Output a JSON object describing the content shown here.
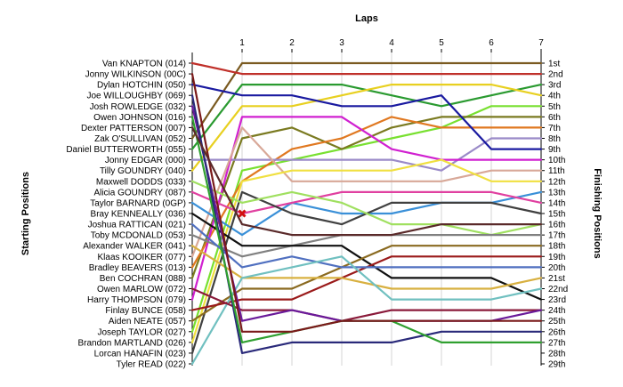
{
  "chart_data": {
    "type": "line",
    "title": "Laps",
    "xlabel": "Laps",
    "ylabel_left": "Starting Positions",
    "ylabel_right": "Finishing Positions",
    "x": [
      0,
      1,
      2,
      3,
      4,
      5,
      6,
      7
    ],
    "xticks": [
      "1",
      "2",
      "3",
      "4",
      "5",
      "6",
      "7"
    ],
    "y_inverted": true,
    "ylim": [
      1,
      29
    ],
    "starting_labels": [
      "Van KNAPTON (014)",
      "Jonny WILKINSON (00C)",
      "Dylan HOTCHIN (050)",
      "Joe WILLOUGHBY (069)",
      "Josh ROWLEDGE (032)",
      "Owen JOHNSON (016)",
      "Dexter PATTERSON (007)",
      "Zak O'SULLIVAN (052)",
      "Daniel BUTTERWORTH (055)",
      "Jonny EDGAR (000)",
      "Tilly GOUNDRY (040)",
      "Maxwell DODDS (033)",
      "Alicia GOUNDRY (087)",
      "Taylor BARNARD (0GP)",
      "Bray KENNEALLY (036)",
      "Joshua RATTICAN (021)",
      "Toby MCDONALD (053)",
      "Alexander WALKER (041)",
      "Klaas KOOIKER (077)",
      "Bradley BEAVERS (013)",
      "Ben COCHRAN (088)",
      "Owen MARLOW (072)",
      "Harry THOMPSON (079)",
      "Finlay BUNCE (058)",
      "Aiden NEATE (057)",
      "Joseph TAYLOR (027)",
      "Brandon MARTLAND (026)",
      "Lorcan HANAFIN (023)",
      "Tyler READ (022)"
    ],
    "finishing_labels": [
      "1st",
      "2nd",
      "3rd",
      "4th",
      "5th",
      "6th",
      "7th",
      "8th",
      "9th",
      "10th",
      "11th",
      "12th",
      "13th",
      "14th",
      "15th",
      "16th",
      "17th",
      "18th",
      "19th",
      "20th",
      "21st",
      "22nd",
      "23rd",
      "24th",
      "25th",
      "26th",
      "27th",
      "28th",
      "29th"
    ],
    "retired_marker": {
      "lap": 1,
      "position": 15,
      "label": "X"
    },
    "series": [
      {
        "color": "#7a5a20",
        "values": [
          8,
          1,
          1,
          1,
          1,
          1,
          1,
          1
        ]
      },
      {
        "color": "#c0302a",
        "values": [
          1,
          2,
          2,
          2,
          2,
          2,
          2,
          2
        ]
      },
      {
        "color": "#2a9a30",
        "values": [
          9,
          3,
          3,
          3,
          4,
          5,
          4,
          3
        ]
      },
      {
        "color": "#e8d020",
        "values": [
          11,
          5,
          5,
          4,
          3,
          3,
          3,
          4
        ]
      },
      {
        "color": "#78e030",
        "values": [
          26,
          11,
          10,
          9,
          8,
          7,
          5,
          5
        ]
      },
      {
        "color": "#7a7a20",
        "values": [
          21,
          8,
          7,
          9,
          7,
          6,
          6,
          6
        ]
      },
      {
        "color": "#e07820",
        "values": [
          20,
          12,
          9,
          8,
          6,
          7,
          7,
          7
        ]
      },
      {
        "color": "#9a8ac8",
        "values": [
          10,
          10,
          10,
          10,
          10,
          11,
          8,
          8
        ]
      },
      {
        "color": "#1a1aa0",
        "values": [
          3,
          4,
          4,
          5,
          5,
          4,
          9,
          9
        ]
      },
      {
        "color": "#d020d0",
        "values": [
          23,
          6,
          6,
          6,
          9,
          10,
          10,
          10
        ]
      },
      {
        "color": "#d8a898",
        "values": [
          19,
          7,
          12,
          12,
          12,
          12,
          11,
          11
        ]
      },
      {
        "color": "#f0e040",
        "values": [
          27,
          12,
          11,
          11,
          11,
          10,
          12,
          12
        ]
      },
      {
        "color": "#3a90d8",
        "values": [
          14,
          17,
          14,
          15,
          15,
          14,
          14,
          13
        ]
      },
      {
        "color": "#e040a0",
        "values": [
          13,
          15,
          14,
          13,
          13,
          13,
          13,
          14
        ]
      },
      {
        "color": "#404040",
        "values": [
          28,
          13,
          15,
          16,
          14,
          14,
          14,
          15
        ]
      },
      {
        "color": "#a0e060",
        "values": [
          12,
          14,
          13,
          14,
          16,
          16,
          17,
          16
        ]
      },
      {
        "color": "#808080",
        "values": [
          17,
          19,
          18,
          17,
          17,
          17,
          17,
          17
        ]
      },
      {
        "color": "#101010",
        "values": [
          15,
          18,
          18,
          18,
          21,
          21,
          21,
          23
        ]
      },
      {
        "color": "#8a6a20",
        "values": [
          25,
          22,
          22,
          20,
          18,
          18,
          18,
          18
        ]
      },
      {
        "color": "#9a1a1a",
        "values": [
          24,
          23,
          23,
          21,
          19,
          19,
          19,
          19
        ]
      },
      {
        "color": "#5070c0",
        "values": [
          16,
          20,
          19,
          20,
          20,
          20,
          20,
          20
        ]
      },
      {
        "color": "#d8b040",
        "values": [
          18,
          21,
          21,
          21,
          22,
          22,
          22,
          21
        ]
      },
      {
        "color": "#70c0c0",
        "values": [
          29,
          21,
          20,
          19,
          23,
          23,
          23,
          22
        ]
      },
      {
        "color": "#8a1a3a",
        "values": [
          22,
          24,
          24,
          25,
          24,
          24,
          24,
          24
        ]
      },
      {
        "color": "#6a1a9a",
        "values": [
          5,
          25,
          24,
          25,
          25,
          25,
          25,
          24
        ]
      },
      {
        "color": "#2a2a7a",
        "values": [
          4,
          28,
          27,
          27,
          27,
          26,
          26,
          26
        ]
      },
      {
        "color": "#30a030",
        "values": [
          6,
          27,
          26,
          25,
          25,
          27,
          27,
          27
        ]
      },
      {
        "color": "#7a1a1a",
        "values": [
          2,
          26,
          26,
          25,
          25,
          25,
          25,
          25
        ]
      },
      {
        "color": "#5a2a2a",
        "values": [
          7,
          16,
          17,
          17,
          17,
          16,
          16,
          16
        ]
      }
    ]
  }
}
